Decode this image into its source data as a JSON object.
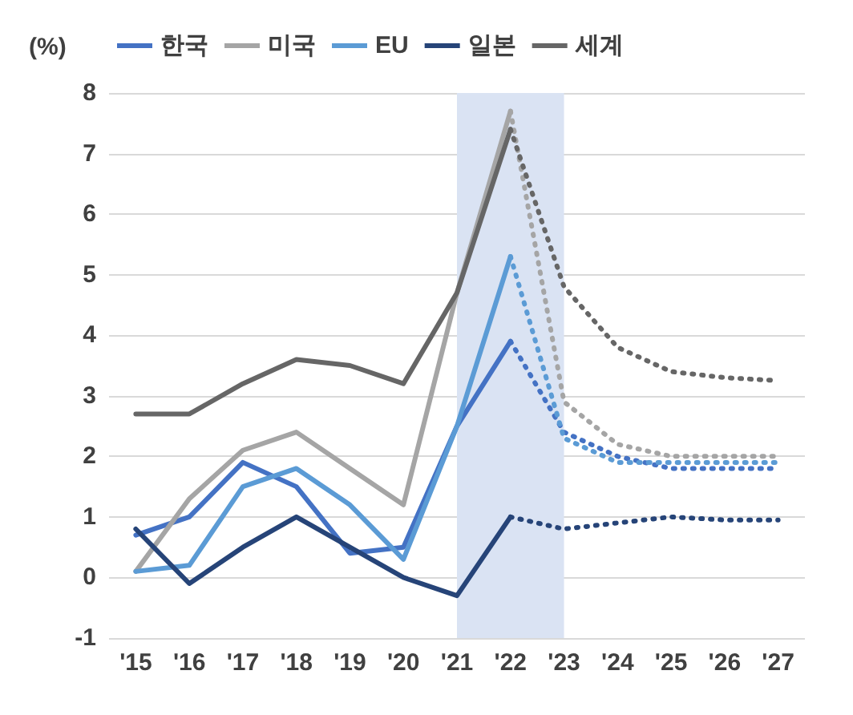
{
  "chart_data": {
    "type": "line",
    "ylabel": "(%)",
    "categories": [
      "'15",
      "'16",
      "'17",
      "'18",
      "'19",
      "'20",
      "'21",
      "'22",
      "'23",
      "'24",
      "'25",
      "'26",
      "'27"
    ],
    "series": [
      {
        "name": "한국",
        "color": "#4472c4",
        "values": [
          0.7,
          1.0,
          1.9,
          1.5,
          0.4,
          0.5,
          2.5,
          3.9,
          null,
          null,
          null,
          null,
          null
        ]
      },
      {
        "name": "미국",
        "color": "#a5a5a5",
        "values": [
          0.1,
          1.3,
          2.1,
          2.4,
          1.8,
          1.2,
          4.7,
          7.7,
          null,
          null,
          null,
          null,
          null
        ]
      },
      {
        "name": "EU",
        "color": "#5b9bd5",
        "values": [
          0.1,
          0.2,
          1.5,
          1.8,
          1.2,
          0.3,
          2.5,
          5.3,
          null,
          null,
          null,
          null,
          null
        ]
      },
      {
        "name": "일본",
        "color": "#264478",
        "values": [
          0.8,
          -0.1,
          0.5,
          1.0,
          0.5,
          0.0,
          -0.3,
          1.0,
          null,
          null,
          null,
          null,
          null
        ]
      },
      {
        "name": "세계",
        "color": "#666666",
        "values": [
          2.7,
          2.7,
          3.2,
          3.6,
          3.5,
          3.2,
          4.7,
          7.4,
          null,
          null,
          null,
          null,
          null
        ]
      },
      {
        "color": "#4472c4",
        "line_style": "dotted",
        "values": [
          null,
          null,
          null,
          null,
          null,
          null,
          null,
          3.9,
          2.4,
          2.0,
          1.8,
          1.8,
          1.8
        ]
      },
      {
        "color": "#a5a5a5",
        "line_style": "dotted",
        "values": [
          null,
          null,
          null,
          null,
          null,
          null,
          null,
          7.7,
          2.9,
          2.2,
          2.0,
          2.0,
          2.0
        ]
      },
      {
        "color": "#5b9bd5",
        "line_style": "dotted",
        "values": [
          null,
          null,
          null,
          null,
          null,
          null,
          null,
          5.3,
          2.3,
          1.9,
          1.9,
          1.9,
          1.9
        ]
      },
      {
        "color": "#264478",
        "line_style": "dotted",
        "values": [
          null,
          null,
          null,
          null,
          null,
          null,
          null,
          1.0,
          0.8,
          0.9,
          1.0,
          0.95,
          0.95
        ]
      },
      {
        "color": "#666666",
        "line_style": "dotted",
        "values": [
          null,
          null,
          null,
          null,
          null,
          null,
          null,
          7.4,
          4.8,
          3.8,
          3.4,
          3.3,
          3.25
        ]
      }
    ],
    "bands": [
      {
        "axis": "x",
        "from": "'21",
        "to": "'23",
        "color": "#dae3f3"
      }
    ],
    "ylim": [
      -1,
      8
    ],
    "yticks": [
      -1,
      0,
      1,
      2,
      3,
      4,
      5,
      6,
      7,
      8
    ],
    "grid": "y",
    "legend": "top",
    "marker": "none",
    "line_style": "solid"
  }
}
